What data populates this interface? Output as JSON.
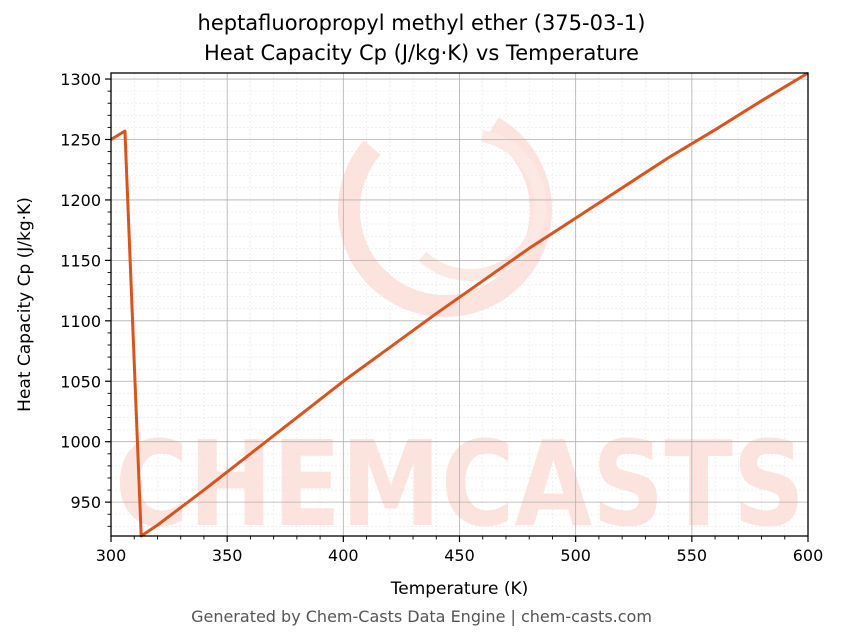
{
  "chart_data": {
    "type": "line",
    "title": "heptafluoropropyl methyl ether (375-03-1)",
    "subtitle": "Heat Capacity Cp (J/kg·K) vs Temperature",
    "xlabel": "Temperature (K)",
    "ylabel": "Heat Capacity Cp (J/kg·K)",
    "xlim": [
      300,
      600
    ],
    "ylim": [
      922,
      1305
    ],
    "xticks": [
      300,
      350,
      400,
      450,
      500,
      550,
      600
    ],
    "yticks": [
      950,
      1000,
      1050,
      1100,
      1150,
      1200,
      1250,
      1300
    ],
    "grid": true,
    "line_color": "#d9531e",
    "series": [
      {
        "x": [
          300,
          306,
          313,
          320,
          340,
          360,
          380,
          400,
          420,
          440,
          460,
          480,
          500,
          520,
          540,
          560,
          580,
          600
        ],
        "y": [
          1250,
          1257,
          922,
          931,
          960,
          990,
          1020,
          1050,
          1078,
          1106,
          1133,
          1160,
          1185,
          1210,
          1235,
          1258,
          1282,
          1305
        ]
      }
    ],
    "watermark": "CHEMCASTS"
  },
  "footer": "Generated by Chem-Casts Data Engine | chem-casts.com"
}
